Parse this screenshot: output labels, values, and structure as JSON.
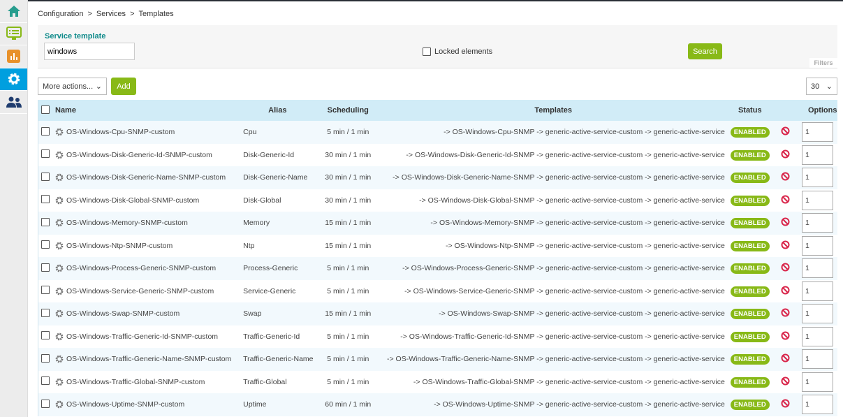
{
  "sidebar": {
    "items": [
      {
        "icon": "home-icon",
        "color": "#279d8e"
      },
      {
        "icon": "monitoring-icon",
        "color": "#88b917"
      },
      {
        "icon": "reporting-icon",
        "color": "#e8912a"
      },
      {
        "icon": "gear-icon",
        "color": "#ffffff",
        "active": true
      },
      {
        "icon": "users-icon",
        "color": "#1f3c6e"
      }
    ]
  },
  "breadcrumb": [
    "Configuration",
    ">",
    "Services",
    ">",
    "Templates"
  ],
  "filters": {
    "label": "Service template",
    "value": "windows",
    "locked_label": "Locked elements",
    "search_label": "Search",
    "tab_label": "Filters"
  },
  "toolbar": {
    "more_actions": "More actions...",
    "add_label": "Add",
    "per_page": "30"
  },
  "table": {
    "headers": {
      "name": "Name",
      "alias": "Alias",
      "scheduling": "Scheduling",
      "templates": "Templates",
      "status": "Status",
      "options": "Options"
    },
    "rows": [
      {
        "name": "OS-Windows-Cpu-SNMP-custom",
        "alias": "Cpu",
        "scheduling": "5 min / 1 min",
        "templates": "-> OS-Windows-Cpu-SNMP -> generic-active-service-custom -> generic-active-service",
        "status": "ENABLED",
        "option": "1"
      },
      {
        "name": "OS-Windows-Disk-Generic-Id-SNMP-custom",
        "alias": "Disk-Generic-Id",
        "scheduling": "30 min / 1 min",
        "templates": "-> OS-Windows-Disk-Generic-Id-SNMP -> generic-active-service-custom -> generic-active-service",
        "status": "ENABLED",
        "option": "1"
      },
      {
        "name": "OS-Windows-Disk-Generic-Name-SNMP-custom",
        "alias": "Disk-Generic-Name",
        "scheduling": "30 min / 1 min",
        "templates": "-> OS-Windows-Disk-Generic-Name-SNMP -> generic-active-service-custom -> generic-active-service",
        "status": "ENABLED",
        "option": "1"
      },
      {
        "name": "OS-Windows-Disk-Global-SNMP-custom",
        "alias": "Disk-Global",
        "scheduling": "30 min / 1 min",
        "templates": "-> OS-Windows-Disk-Global-SNMP -> generic-active-service-custom -> generic-active-service",
        "status": "ENABLED",
        "option": "1"
      },
      {
        "name": "OS-Windows-Memory-SNMP-custom",
        "alias": "Memory",
        "scheduling": "15 min / 1 min",
        "templates": "-> OS-Windows-Memory-SNMP -> generic-active-service-custom -> generic-active-service",
        "status": "ENABLED",
        "option": "1"
      },
      {
        "name": "OS-Windows-Ntp-SNMP-custom",
        "alias": "Ntp",
        "scheduling": "15 min / 1 min",
        "templates": "-> OS-Windows-Ntp-SNMP -> generic-active-service-custom -> generic-active-service",
        "status": "ENABLED",
        "option": "1"
      },
      {
        "name": "OS-Windows-Process-Generic-SNMP-custom",
        "alias": "Process-Generic",
        "scheduling": "5 min / 1 min",
        "templates": "-> OS-Windows-Process-Generic-SNMP -> generic-active-service-custom -> generic-active-service",
        "status": "ENABLED",
        "option": "1"
      },
      {
        "name": "OS-Windows-Service-Generic-SNMP-custom",
        "alias": "Service-Generic",
        "scheduling": "5 min / 1 min",
        "templates": "-> OS-Windows-Service-Generic-SNMP -> generic-active-service-custom -> generic-active-service",
        "status": "ENABLED",
        "option": "1"
      },
      {
        "name": "OS-Windows-Swap-SNMP-custom",
        "alias": "Swap",
        "scheduling": "15 min / 1 min",
        "templates": "-> OS-Windows-Swap-SNMP -> generic-active-service-custom -> generic-active-service",
        "status": "ENABLED",
        "option": "1"
      },
      {
        "name": "OS-Windows-Traffic-Generic-Id-SNMP-custom",
        "alias": "Traffic-Generic-Id",
        "scheduling": "5 min / 1 min",
        "templates": "-> OS-Windows-Traffic-Generic-Id-SNMP -> generic-active-service-custom -> generic-active-service",
        "status": "ENABLED",
        "option": "1"
      },
      {
        "name": "OS-Windows-Traffic-Generic-Name-SNMP-custom",
        "alias": "Traffic-Generic-Name",
        "scheduling": "5 min / 1 min",
        "templates": "-> OS-Windows-Traffic-Generic-Name-SNMP -> generic-active-service-custom -> generic-active-service",
        "status": "ENABLED",
        "option": "1"
      },
      {
        "name": "OS-Windows-Traffic-Global-SNMP-custom",
        "alias": "Traffic-Global",
        "scheduling": "5 min / 1 min",
        "templates": "-> OS-Windows-Traffic-Global-SNMP -> generic-active-service-custom -> generic-active-service",
        "status": "ENABLED",
        "option": "1"
      },
      {
        "name": "OS-Windows-Uptime-SNMP-custom",
        "alias": "Uptime",
        "scheduling": "60 min / 1 min",
        "templates": "-> OS-Windows-Uptime-SNMP -> generic-active-service-custom -> generic-active-service",
        "status": "ENABLED",
        "option": "1"
      }
    ]
  }
}
